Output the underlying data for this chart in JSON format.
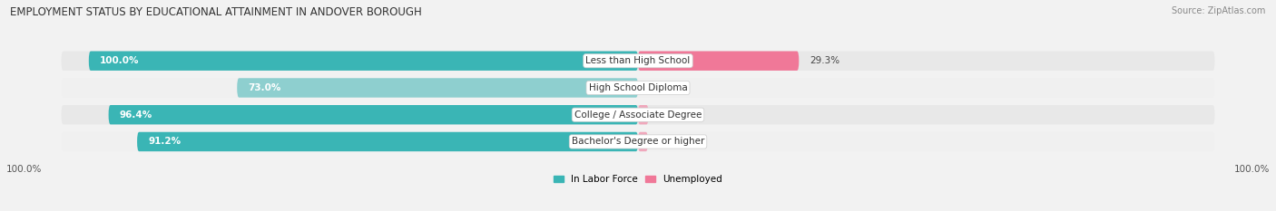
{
  "title": "EMPLOYMENT STATUS BY EDUCATIONAL ATTAINMENT IN ANDOVER BOROUGH",
  "source": "Source: ZipAtlas.com",
  "categories": [
    "Less than High School",
    "High School Diploma",
    "College / Associate Degree",
    "Bachelor's Degree or higher"
  ],
  "in_labor_force": [
    100.0,
    73.0,
    96.4,
    91.2
  ],
  "unemployed": [
    29.3,
    0.0,
    1.9,
    1.8
  ],
  "color_labor": "#3ab5b5",
  "color_labor_light": "#8ecfcf",
  "color_unemployed": "#f07898",
  "color_unemployed_light": "#f0a8bc",
  "bar_bg_color": "#e0e0e0",
  "background_color": "#f2f2f2",
  "row_bg_even": "#e8e8e8",
  "row_bg_odd": "#f5f5f5",
  "x_left_label": "100.0%",
  "x_right_label": "100.0%",
  "legend_labor": "In Labor Force",
  "legend_unemployed": "Unemployed",
  "title_fontsize": 8.5,
  "label_fontsize": 7.5,
  "pct_fontsize": 7.5,
  "source_fontsize": 7.0
}
